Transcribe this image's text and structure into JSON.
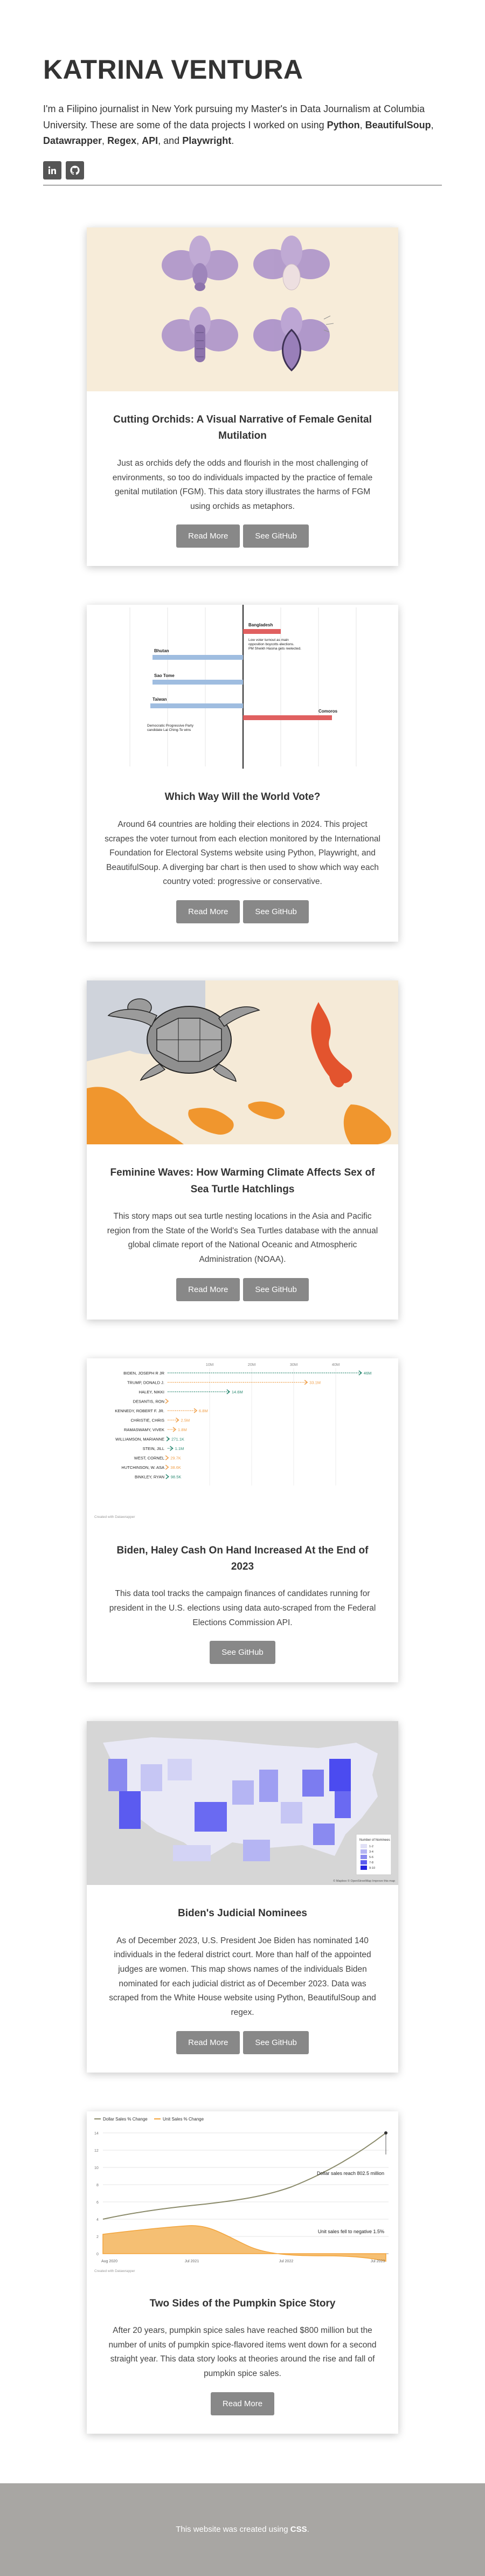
{
  "header": {
    "name": "KATRINA VENTURA",
    "bio_intro": "I'm a Filipino journalist in New York pursuing my Master's in Data Journalism at Columbia University. These are some of the data projects I worked on using ",
    "tools": [
      "Python",
      "BeautifulSoup",
      "Datawrapper",
      "Regex",
      "API"
    ],
    "bio_and": "and",
    "last_tool": "Playwright",
    "socials": [
      {
        "icon": "linkedin-icon",
        "label": "in"
      },
      {
        "icon": "github-icon",
        "label": "GitHub"
      }
    ]
  },
  "projects": [
    {
      "title": "Cutting Orchids: A Visual Narrative of Female Genital Mutilation",
      "description": "Just as orchids defy the odds and flourish in the most challenging of environments, so too do individuals impacted by the practice of female genital mutilation (FGM). This data story illustrates the harms of FGM using orchids as metaphors.",
      "buttons": [
        "Read More",
        "See GitHub"
      ]
    },
    {
      "title": "Which Way Will the World Vote?",
      "description": "Around 64 countries are holding their elections in 2024. This project scrapes the voter turnout from each election monitored by the International Foundation for Electoral Systems website using Python, Playwright, and BeautifulSoup. A diverging bar chart is then used to show which way each country voted: progressive or conservative.",
      "buttons": [
        "Read More",
        "See GitHub"
      ],
      "chart_text": {
        "countries": [
          "Bangladesh",
          "Bhutan",
          "Comoros",
          "Sao Tome",
          "Taiwan"
        ],
        "annotation": "Low voter turnout as main opposition boycotts elections. PM Sheikh Hasina gets reelected.",
        "note": "Democratic Progressive Party candidate Lai Ching-Te wins"
      }
    },
    {
      "title": "Feminine Waves: How Warming Climate Affects Sex of Sea Turtle Hatchlings",
      "description": "This story maps out sea turtle nesting locations in the Asia and Pacific region from the State of the World's Sea Turtles database with the annual global climate report of the National Oceanic and Atmospheric Administration (NOAA).",
      "buttons": [
        "Read More",
        "See GitHub"
      ]
    },
    {
      "title": "Biden, Haley Cash On Hand Increased At the End of 2023",
      "description": "This data tool tracks the campaign finances of candidates running for president in the U.S. elections using data auto-scraped from the Federal Elections Commission API.",
      "buttons": [
        "See GitHub"
      ],
      "chart_data": {
        "type": "bar",
        "x_ticks": [
          "10M",
          "20M",
          "30M",
          "40M"
        ],
        "categories": [
          "BIDEN, JOSEPH R JR",
          "TRUMP, DONALD J.",
          "HALEY, NIKKI",
          "DESANTIS, RON",
          "KENNEDY, ROBERT F. JR.",
          "CHRISTIE, CHRIS",
          "RAMASWAMY, VIVEK",
          "WILLIAMSON, MARIANNE",
          "STEIN, JILL",
          "WEST, CORNEL",
          "HUTCHINSON, W. ASA",
          "BINKLEY, RYAN"
        ],
        "labels": [
          "46M",
          "33.1M",
          "14.6M",
          "",
          "6.8M",
          "2.5M",
          "1.8M",
          "271.1K",
          "1.1M",
          "29.7K",
          "38.6K",
          "98.5K"
        ],
        "values": [
          46,
          33.1,
          14.6,
          0,
          6.8,
          2.5,
          1.8,
          0.27,
          1.1,
          0.03,
          0.04,
          0.1
        ],
        "series_colors": {
          "increase": "#2e8b74",
          "decrease": "#f0a04b"
        },
        "credit": "Created with Datawrapper"
      }
    },
    {
      "title": "Biden's Judicial Nominees",
      "description": "As of December 2023, U.S. President Joe Biden has nominated 140 individuals in the federal district court. More than half of the appointed judges are women. This map shows names of the individuals Biden nominated for each judicial district as of December 2023. Data was scraped from the White House website using Python, BeautifulSoup and regex.",
      "buttons": [
        "Read More",
        "See GitHub"
      ],
      "legend": {
        "title": "Number of Nominees",
        "ticks": [
          "1-2",
          "3-4",
          "5-6",
          "7-8",
          "9-10"
        ]
      },
      "credits": "© Mapbox © OpenStreetMap Improve this map"
    },
    {
      "title": "Two Sides of the Pumpkin Spice Story",
      "description": "After 20 years, pumpkin spice sales have reached $800 million but the number of units of pumpkin spice-flavored items went down for a second straight year. This data story looks at theories around the rise and fall of pumpkin spice sales.",
      "buttons": [
        "Read More"
      ],
      "chart_data": {
        "type": "line",
        "series": [
          {
            "name": "Dollar Sales % Change",
            "color": "#8a8a6a"
          },
          {
            "name": "Unit Sales % Change",
            "color": "#f3a43a"
          }
        ],
        "y_ticks": [
          "14",
          "12",
          "10",
          "8",
          "6",
          "4",
          "2",
          "0"
        ],
        "x_ticks": [
          "Aug 2020",
          "Jul 2021",
          "Jul 2022",
          "Jul 2023"
        ],
        "annotations": [
          "Dollar sales reach 802.5 million",
          "Unit sales fell to negative 1.5%"
        ],
        "credit": "Created with Datawrapper"
      }
    }
  ],
  "footer": {
    "text": "This website was created using ",
    "tool": "CSS"
  }
}
